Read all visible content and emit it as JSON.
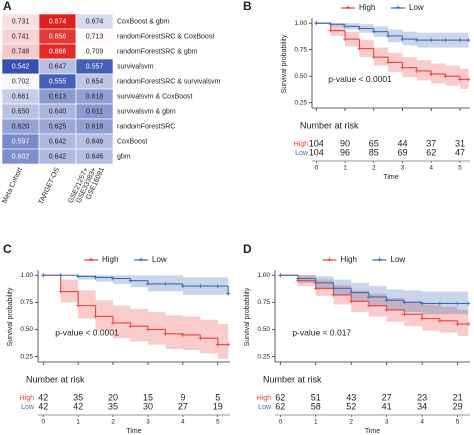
{
  "chart_data": [
    {
      "type": "heatmap",
      "panel": "A",
      "rows": [
        "CoxBoost & gbm",
        "randomForestSRC & CoxBoost",
        "randomForestSRC & gbm",
        "survivalsvm",
        "randomForestSRC & survivalsvm",
        "survivalsvm & CoxBoost",
        "survivalsvm & gbm",
        "randomForestSRC",
        "CoxBoost",
        "gbm"
      ],
      "columns": [
        [
          "Meta Cohort"
        ],
        [
          "TARGET-OS"
        ],
        [
          "GSE21257+",
          "GSE33383+",
          "GSE16091"
        ]
      ],
      "values": [
        [
          0.731,
          0.874,
          0.674
        ],
        [
          0.741,
          0.856,
          0.713
        ],
        [
          0.748,
          0.866,
          0.709
        ],
        [
          0.542,
          0.647,
          0.557
        ],
        [
          0.702,
          0.555,
          0.654
        ],
        [
          0.661,
          0.613,
          0.618
        ],
        [
          0.65,
          0.64,
          0.611
        ],
        [
          0.62,
          0.625,
          0.618
        ],
        [
          0.597,
          0.642,
          0.646
        ],
        [
          0.602,
          0.642,
          0.646
        ]
      ],
      "value_labels": [
        [
          "0.731",
          "0.874",
          "0.674"
        ],
        [
          "0.741",
          "0.856",
          "0.713"
        ],
        [
          "0.748",
          "0.866",
          "0.709"
        ],
        [
          "0.542",
          "0.647",
          "0.557"
        ],
        [
          "0.702",
          "0.555",
          "0.654"
        ],
        [
          "0.661",
          "0.613",
          "0.618"
        ],
        [
          "0.650",
          "0.640",
          "0.611"
        ],
        [
          "0.620",
          "0.625",
          "0.618"
        ],
        [
          "0.597",
          "0.642",
          "0.646"
        ],
        [
          "0.602",
          "0.642",
          "0.646"
        ]
      ],
      "colors": {
        "low": "#3550b0",
        "mid": "#ffffff",
        "high": "#e31e1e"
      }
    },
    {
      "type": "survival",
      "panel": "B",
      "x": [
        0,
        0.5,
        1,
        1.5,
        2,
        2.5,
        3,
        3.5,
        4,
        4.5,
        5,
        5.3
      ],
      "series": [
        {
          "name": "High",
          "color": "#e8433f",
          "values": [
            1,
            0.93,
            0.85,
            0.76,
            0.68,
            0.63,
            0.58,
            0.55,
            0.52,
            0.5,
            0.47,
            0.47
          ],
          "lower": [
            1,
            0.88,
            0.78,
            0.68,
            0.6,
            0.54,
            0.49,
            0.46,
            0.43,
            0.41,
            0.38,
            0.38
          ],
          "upper": [
            1,
            0.98,
            0.92,
            0.84,
            0.77,
            0.72,
            0.68,
            0.65,
            0.62,
            0.6,
            0.57,
            0.57
          ]
        },
        {
          "name": "Low",
          "color": "#3c6ab3",
          "values": [
            1,
            0.99,
            0.97,
            0.95,
            0.92,
            0.88,
            0.85,
            0.84,
            0.84,
            0.84,
            0.84,
            0.84
          ],
          "lower": [
            1,
            0.97,
            0.94,
            0.91,
            0.87,
            0.82,
            0.79,
            0.77,
            0.77,
            0.77,
            0.77,
            0.77
          ],
          "upper": [
            1,
            1,
            1,
            0.99,
            0.97,
            0.94,
            0.92,
            0.91,
            0.91,
            0.91,
            0.91,
            0.91
          ]
        }
      ],
      "xlim": [
        -0.15,
        5.35
      ],
      "xticks": [
        0,
        1,
        2,
        3,
        4,
        5
      ],
      "ylim": [
        0.2,
        1.03
      ],
      "yticks": [
        {
          "value": 0.25,
          "label": "0.25"
        },
        {
          "value": 0.5,
          "label": "0.50"
        },
        {
          "value": 0.75,
          "label": "0.75"
        },
        {
          "value": 1,
          "label": "1.00"
        }
      ],
      "ylabel": "Survival probability",
      "xlabel": "Time",
      "annotation": "p-value < 0.0001",
      "risk_table": {
        "title": "Number at risk",
        "rows": [
          {
            "name": "High",
            "values": [
              104,
              90,
              65,
              44,
              37,
              31
            ]
          },
          {
            "name": "Low",
            "values": [
              104,
              96,
              85,
              69,
              62,
              47
            ]
          }
        ]
      }
    },
    {
      "type": "survival",
      "panel": "C",
      "x": [
        0,
        0.5,
        1,
        1.5,
        2,
        2.5,
        3,
        3.5,
        4,
        4.5,
        5,
        5.3
      ],
      "series": [
        {
          "name": "High",
          "color": "#e8433f",
          "values": [
            1,
            0.85,
            0.72,
            0.62,
            0.56,
            0.53,
            0.5,
            0.46,
            0.45,
            0.42,
            0.36,
            0.36
          ],
          "lower": [
            1,
            0.75,
            0.6,
            0.49,
            0.42,
            0.39,
            0.36,
            0.32,
            0.31,
            0.28,
            0.23,
            0.23
          ],
          "upper": [
            1,
            0.96,
            0.86,
            0.77,
            0.72,
            0.69,
            0.66,
            0.63,
            0.62,
            0.59,
            0.55,
            0.55
          ]
        },
        {
          "name": "Low",
          "color": "#3c6ab3",
          "values": [
            1,
            1,
            0.99,
            0.98,
            0.97,
            0.95,
            0.92,
            0.92,
            0.9,
            0.9,
            0.9,
            0.83
          ],
          "lower": [
            1,
            1,
            0.96,
            0.94,
            0.92,
            0.89,
            0.85,
            0.85,
            0.82,
            0.82,
            0.82,
            0.72
          ],
          "upper": [
            1,
            1,
            1,
            1,
            1,
            1,
            1,
            1,
            0.98,
            0.98,
            0.98,
            0.95
          ]
        }
      ],
      "xlim": [
        -0.15,
        5.35
      ],
      "xticks": [
        0,
        1,
        2,
        3,
        4,
        5
      ],
      "ylim": [
        0.2,
        1.03
      ],
      "yticks": [
        {
          "value": 0.25,
          "label": "0.25"
        },
        {
          "value": 0.5,
          "label": "0.50"
        },
        {
          "value": 0.75,
          "label": "0.75"
        },
        {
          "value": 1,
          "label": "1.00"
        }
      ],
      "ylabel": "Survival probability",
      "xlabel": "Time",
      "annotation": "p-value < 0.0001",
      "risk_table": {
        "title": "Number at risk",
        "rows": [
          {
            "name": "High",
            "values": [
              42,
              35,
              20,
              15,
              9,
              5
            ]
          },
          {
            "name": "Low",
            "values": [
              42,
              42,
              35,
              30,
              27,
              19
            ]
          }
        ]
      }
    },
    {
      "type": "survival",
      "panel": "D",
      "x": [
        0,
        0.5,
        1,
        1.5,
        2,
        2.5,
        3,
        3.5,
        4,
        4.5,
        5,
        5.3
      ],
      "series": [
        {
          "name": "High",
          "color": "#e8433f",
          "values": [
            1,
            0.95,
            0.88,
            0.82,
            0.76,
            0.72,
            0.68,
            0.64,
            0.6,
            0.58,
            0.55,
            0.55
          ],
          "lower": [
            1,
            0.9,
            0.81,
            0.73,
            0.66,
            0.62,
            0.57,
            0.53,
            0.49,
            0.47,
            0.44,
            0.44
          ],
          "upper": [
            1,
            1,
            0.96,
            0.91,
            0.86,
            0.83,
            0.79,
            0.76,
            0.73,
            0.71,
            0.68,
            0.68
          ]
        },
        {
          "name": "Low",
          "color": "#3c6ab3",
          "values": [
            1,
            0.97,
            0.93,
            0.88,
            0.84,
            0.8,
            0.77,
            0.75,
            0.74,
            0.74,
            0.74,
            0.74
          ],
          "lower": [
            1,
            0.93,
            0.87,
            0.81,
            0.76,
            0.71,
            0.68,
            0.66,
            0.64,
            0.64,
            0.64,
            0.64
          ],
          "upper": [
            1,
            1,
            0.99,
            0.96,
            0.93,
            0.9,
            0.87,
            0.86,
            0.85,
            0.85,
            0.85,
            0.85
          ]
        }
      ],
      "xlim": [
        -0.15,
        5.35
      ],
      "xticks": [
        0,
        1,
        2,
        3,
        4,
        5
      ],
      "ylim": [
        0.2,
        1.03
      ],
      "yticks": [
        {
          "value": 0.25,
          "label": "0.25"
        },
        {
          "value": 0.5,
          "label": "0.50"
        },
        {
          "value": 0.75,
          "label": "0.75"
        },
        {
          "value": 1,
          "label": "1.00"
        }
      ],
      "ylabel": "Survival probability",
      "xlabel": "Time",
      "annotation": "p-value = 0.017",
      "risk_table": {
        "title": "Number at risk",
        "rows": [
          {
            "name": "High",
            "values": [
              62,
              51,
              43,
              27,
              23,
              21
            ]
          },
          {
            "name": "Low",
            "values": [
              62,
              58,
              52,
              41,
              34,
              29
            ]
          }
        ]
      }
    }
  ]
}
